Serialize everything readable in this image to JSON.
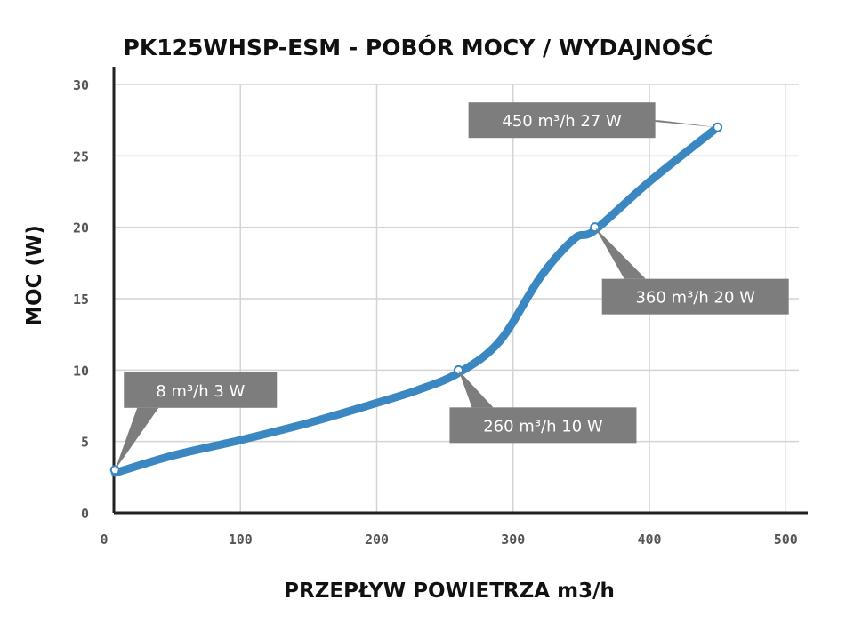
{
  "chart_data": {
    "type": "line",
    "title": "PK125WHSP-ESM - POBÓR MOCY / WYDAJNOŚĆ",
    "xlabel": "PRZEPŁYW POWIETRZA m3/h",
    "ylabel": "MOC (W)",
    "xlim": [
      0,
      500
    ],
    "ylim": [
      0,
      30
    ],
    "x_ticks": [
      "0",
      "100",
      "200",
      "300",
      "400",
      "500"
    ],
    "y_ticks": [
      "0",
      "5",
      "10",
      "15",
      "20",
      "25",
      "30"
    ],
    "grid": true,
    "series": [
      {
        "color": "#3a87c1",
        "x": [
          8,
          50,
          100,
          150,
          200,
          230,
          260,
          290,
          320,
          345,
          360,
          400,
          450
        ],
        "y": [
          2.8,
          4,
          5.1,
          6.3,
          7.7,
          8.6,
          9.8,
          12,
          16.5,
          19.2,
          19.8,
          23.2,
          27
        ]
      }
    ],
    "annotations": [
      {
        "x": 8,
        "y": 3,
        "text": "8 m³/h  3 W",
        "pos": "upper-right"
      },
      {
        "x": 260,
        "y": 10,
        "text": "260 m³/h  10 W",
        "pos": "lower-right"
      },
      {
        "x": 360,
        "y": 20,
        "text": "360 m³/h  20 W",
        "pos": "lower-right"
      },
      {
        "x": 450,
        "y": 27,
        "text": "450 m³/h  27 W",
        "pos": "upper-left"
      }
    ]
  }
}
